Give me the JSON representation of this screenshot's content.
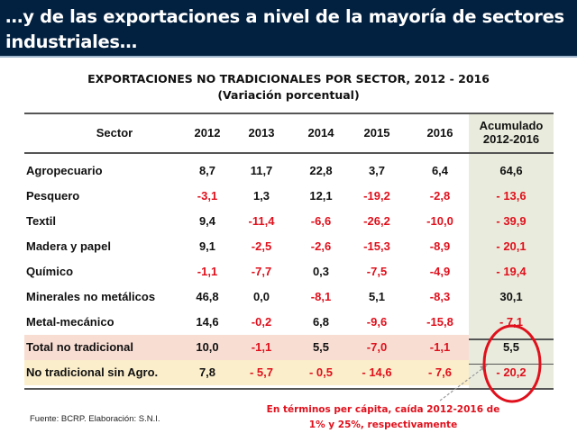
{
  "slide_title": "…y de las exportaciones a nivel de la mayoría de sectores industriales…",
  "table_title": "EXPORTACIONES NO TRADICIONALES POR SECTOR, 2012 - 2016",
  "table_subtitle": "(Variación porcentual)",
  "columns": [
    "Sector",
    "2012",
    "2013",
    "2014",
    "2015",
    "2016",
    "Acumulado",
    "2012-2016"
  ],
  "rows": [
    {
      "sector": "Agropecuario",
      "values": [
        "8,7",
        "11,7",
        "22,8",
        "3,7",
        "6,4",
        "64,6"
      ]
    },
    {
      "sector": "Pesquero",
      "values": [
        "-3,1",
        "1,3",
        "12,1",
        "-19,2",
        "-2,8",
        "- 13,6"
      ]
    },
    {
      "sector": "Textil",
      "values": [
        "9,4",
        "-11,4",
        "-6,6",
        "-26,2",
        "-10,0",
        "- 39,9"
      ]
    },
    {
      "sector": "Madera y papel",
      "values": [
        "9,1",
        "-2,5",
        "-2,6",
        "-15,3",
        "-8,9",
        "- 20,1"
      ]
    },
    {
      "sector": "Químico",
      "values": [
        "-1,1",
        "-7,7",
        "0,3",
        "-7,5",
        "-4,9",
        "- 19,4"
      ]
    },
    {
      "sector": "Minerales no metálicos",
      "values": [
        "46,8",
        "0,0",
        "-8,1",
        "5,1",
        "-8,3",
        "30,1"
      ]
    },
    {
      "sector": "Metal-mecánico",
      "values": [
        "14,6",
        "-0,2",
        "6,8",
        "-9,6",
        "-15,8",
        "- 7,1"
      ]
    },
    {
      "sector": "Total no tradicional",
      "values": [
        "10,0",
        "-1,1",
        "5,5",
        "-7,0",
        "-1,1",
        "5,5"
      ]
    },
    {
      "sector": "No tradicional sin Agro.",
      "values": [
        "7,8",
        "- 5,7",
        "- 0,5",
        "- 14,6",
        "- 7,6",
        "- 20,2"
      ]
    }
  ],
  "note_line1": "En términos per cápita, caída 2012-2016  de",
  "note_line2": "1% y 25%, respectivamente",
  "source": "Fuente: BCRP. Elaboración: S.N.I.",
  "colors": {
    "header_bg": "#02203f",
    "negative": "#e0101c",
    "total_row_bg": "#f8ddd3",
    "sin_agro_row_bg": "#fbeecb",
    "accumulated_col_bg": "#e9ecdd"
  }
}
